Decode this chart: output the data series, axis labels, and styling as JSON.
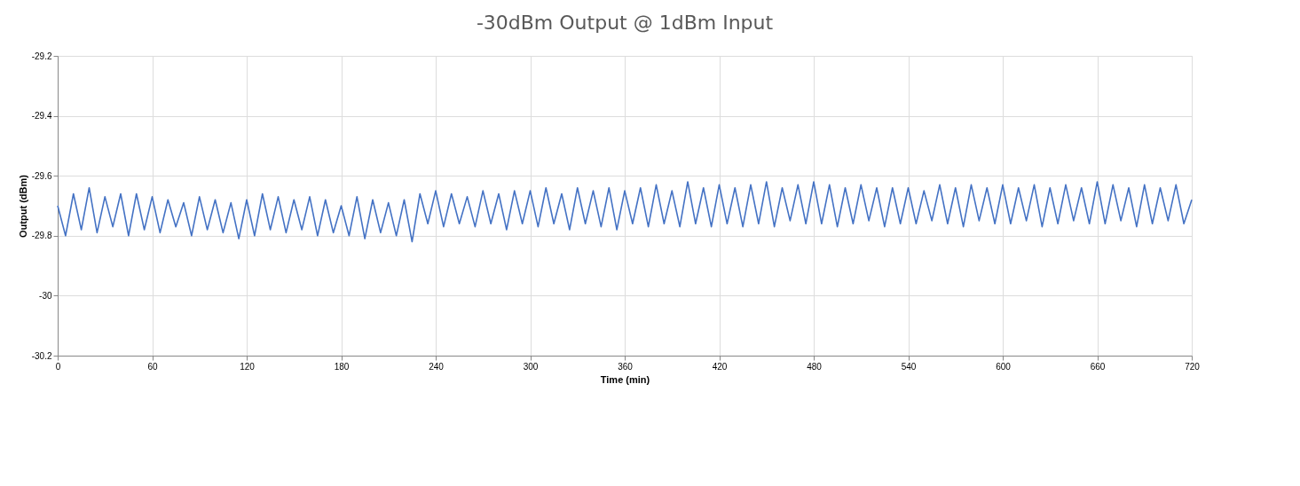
{
  "chart_data": {
    "type": "line",
    "title": "-30dBm Output @ 1dBm Input",
    "xlabel": "Time (min)",
    "ylabel": "Output (dBm)",
    "x": [
      0,
      5,
      10,
      15,
      20,
      25,
      30,
      35,
      40,
      45,
      50,
      55,
      60,
      65,
      70,
      75,
      80,
      85,
      90,
      95,
      100,
      105,
      110,
      115,
      120,
      125,
      130,
      135,
      140,
      145,
      150,
      155,
      160,
      165,
      170,
      175,
      180,
      185,
      190,
      195,
      200,
      205,
      210,
      215,
      220,
      225,
      230,
      235,
      240,
      245,
      250,
      255,
      260,
      265,
      270,
      275,
      280,
      285,
      290,
      295,
      300,
      305,
      310,
      315,
      320,
      325,
      330,
      335,
      340,
      345,
      350,
      355,
      360,
      365,
      370,
      375,
      380,
      385,
      390,
      395,
      400,
      405,
      410,
      415,
      420,
      425,
      430,
      435,
      440,
      445,
      450,
      455,
      460,
      465,
      470,
      475,
      480,
      485,
      490,
      495,
      500,
      505,
      510,
      515,
      520,
      525,
      530,
      535,
      540,
      545,
      550,
      555,
      560,
      565,
      570,
      575,
      580,
      585,
      590,
      595,
      600,
      605,
      610,
      615,
      620,
      625,
      630,
      635,
      640,
      645,
      650,
      655,
      660,
      665,
      670,
      675,
      680,
      685,
      690,
      695,
      700,
      705,
      710,
      715,
      720
    ],
    "series": [
      {
        "color": "#4472c4",
        "values": [
          -29.7,
          -29.8,
          -29.66,
          -29.78,
          -29.64,
          -29.79,
          -29.67,
          -29.77,
          -29.66,
          -29.8,
          -29.66,
          -29.78,
          -29.67,
          -29.79,
          -29.68,
          -29.77,
          -29.69,
          -29.8,
          -29.67,
          -29.78,
          -29.68,
          -29.79,
          -29.69,
          -29.81,
          -29.68,
          -29.8,
          -29.66,
          -29.78,
          -29.67,
          -29.79,
          -29.68,
          -29.78,
          -29.67,
          -29.8,
          -29.68,
          -29.79,
          -29.7,
          -29.8,
          -29.67,
          -29.81,
          -29.68,
          -29.79,
          -29.69,
          -29.8,
          -29.68,
          -29.82,
          -29.66,
          -29.76,
          -29.65,
          -29.77,
          -29.66,
          -29.76,
          -29.67,
          -29.77,
          -29.65,
          -29.76,
          -29.66,
          -29.78,
          -29.65,
          -29.76,
          -29.65,
          -29.77,
          -29.64,
          -29.76,
          -29.66,
          -29.78,
          -29.64,
          -29.76,
          -29.65,
          -29.77,
          -29.64,
          -29.78,
          -29.65,
          -29.76,
          -29.64,
          -29.77,
          -29.63,
          -29.76,
          -29.65,
          -29.77,
          -29.62,
          -29.76,
          -29.64,
          -29.77,
          -29.63,
          -29.76,
          -29.64,
          -29.77,
          -29.63,
          -29.76,
          -29.62,
          -29.77,
          -29.64,
          -29.75,
          -29.63,
          -29.76,
          -29.62,
          -29.76,
          -29.63,
          -29.77,
          -29.64,
          -29.76,
          -29.63,
          -29.75,
          -29.64,
          -29.77,
          -29.64,
          -29.76,
          -29.64,
          -29.76,
          -29.65,
          -29.75,
          -29.63,
          -29.76,
          -29.64,
          -29.77,
          -29.63,
          -29.75,
          -29.64,
          -29.76,
          -29.63,
          -29.76,
          -29.64,
          -29.75,
          -29.63,
          -29.77,
          -29.64,
          -29.76,
          -29.63,
          -29.75,
          -29.64,
          -29.76,
          -29.62,
          -29.76,
          -29.63,
          -29.75,
          -29.64,
          -29.77,
          -29.63,
          -29.76,
          -29.64,
          -29.75,
          -29.63,
          -29.76,
          -29.68
        ]
      }
    ],
    "xlim": [
      0,
      720
    ],
    "xticks": [
      0,
      60,
      120,
      180,
      240,
      300,
      360,
      420,
      480,
      540,
      600,
      660,
      720
    ],
    "ylim": [
      -30.2,
      -29.2
    ],
    "yticks": [
      -30.2,
      -30,
      -29.8,
      -29.6,
      -29.4,
      -29.2
    ],
    "grid": true,
    "legend": false,
    "marker": "none",
    "line_style": "solid"
  }
}
